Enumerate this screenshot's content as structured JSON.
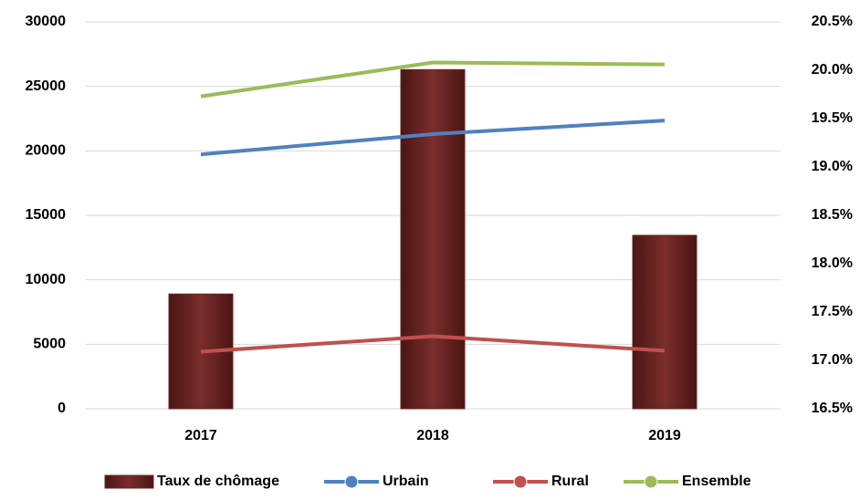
{
  "chart_data": {
    "type": "bar-line",
    "categories": [
      "2017",
      "2018",
      "2019"
    ],
    "series": [
      {
        "name": "Taux de chômage",
        "type": "bar",
        "color": "#6b2524",
        "values": [
          8900,
          26300,
          13450
        ]
      },
      {
        "name": "Urbain",
        "type": "line",
        "axis": "y2",
        "color": "#4f81bd",
        "values": [
          19.13,
          19.34,
          19.48
        ]
      },
      {
        "name": "Rural",
        "type": "line",
        "axis": "y2",
        "color": "#c0504d",
        "values": [
          17.09,
          17.25,
          17.1
        ]
      },
      {
        "name": "Ensemble",
        "type": "line",
        "axis": "y2",
        "color": "#9bbb59",
        "values": [
          19.73,
          20.08,
          20.06
        ]
      }
    ],
    "ylim": [
      0,
      30000
    ],
    "yticks": [
      0,
      5000,
      10000,
      15000,
      20000,
      25000,
      30000
    ],
    "y2lim": [
      16.5,
      20.5
    ],
    "y2ticks": [
      {
        "value": 16.5,
        "label": "16.5%"
      },
      {
        "value": 17,
        "label": "17.0%"
      },
      {
        "value": 17.5,
        "label": "17.5%"
      },
      {
        "value": 18,
        "label": "18.0%"
      },
      {
        "value": 18.5,
        "label": "18.5%"
      },
      {
        "value": 19,
        "label": "19.0%"
      },
      {
        "value": 19.5,
        "label": "19.5%"
      },
      {
        "value": 20,
        "label": "20.0%"
      },
      {
        "value": 20.5,
        "label": "20.5%"
      }
    ],
    "grid": true,
    "legend": "bottom"
  }
}
